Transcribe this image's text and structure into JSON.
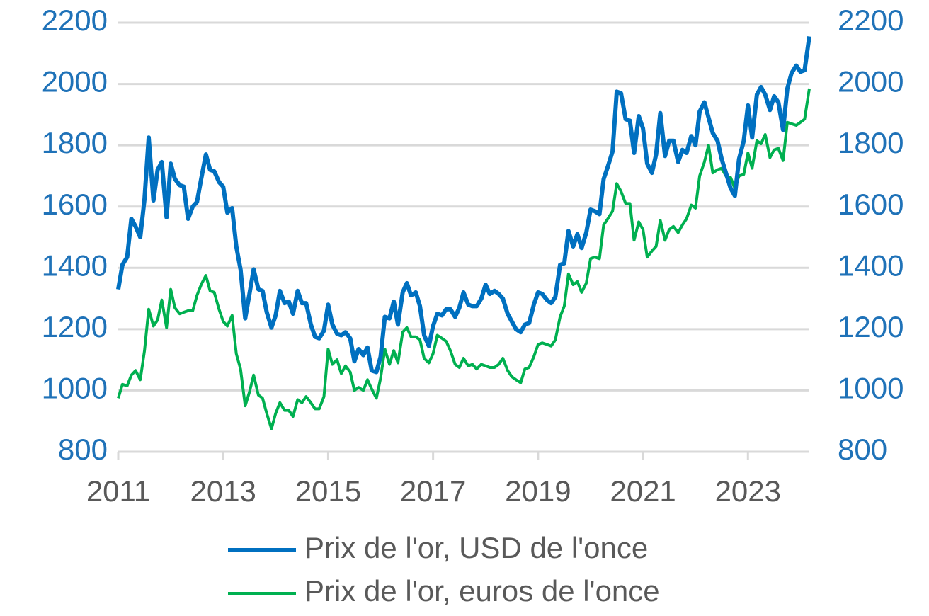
{
  "chart_data": {
    "type": "line",
    "x": [
      2011.0,
      2011.08,
      2011.17,
      2011.25,
      2011.33,
      2011.42,
      2011.5,
      2011.58,
      2011.67,
      2011.75,
      2011.83,
      2011.92,
      2012.0,
      2012.08,
      2012.17,
      2012.25,
      2012.33,
      2012.42,
      2012.5,
      2012.58,
      2012.67,
      2012.75,
      2012.83,
      2012.92,
      2013.0,
      2013.08,
      2013.17,
      2013.25,
      2013.33,
      2013.42,
      2013.5,
      2013.58,
      2013.67,
      2013.75,
      2013.83,
      2013.92,
      2014.0,
      2014.08,
      2014.17,
      2014.25,
      2014.33,
      2014.42,
      2014.5,
      2014.58,
      2014.67,
      2014.75,
      2014.83,
      2014.92,
      2015.0,
      2015.08,
      2015.17,
      2015.25,
      2015.33,
      2015.42,
      2015.5,
      2015.58,
      2015.67,
      2015.75,
      2015.83,
      2015.92,
      2016.0,
      2016.08,
      2016.17,
      2016.25,
      2016.33,
      2016.42,
      2016.5,
      2016.58,
      2016.67,
      2016.75,
      2016.83,
      2016.92,
      2017.0,
      2017.08,
      2017.17,
      2017.25,
      2017.33,
      2017.42,
      2017.5,
      2017.58,
      2017.67,
      2017.75,
      2017.83,
      2017.92,
      2018.0,
      2018.08,
      2018.17,
      2018.25,
      2018.33,
      2018.42,
      2018.5,
      2018.58,
      2018.67,
      2018.75,
      2018.83,
      2018.92,
      2019.0,
      2019.08,
      2019.17,
      2019.25,
      2019.33,
      2019.42,
      2019.5,
      2019.58,
      2019.67,
      2019.75,
      2019.83,
      2019.92,
      2020.0,
      2020.08,
      2020.17,
      2020.25,
      2020.33,
      2020.42,
      2020.5,
      2020.58,
      2020.67,
      2020.75,
      2020.83,
      2020.92,
      2021.0,
      2021.08,
      2021.17,
      2021.25,
      2021.33,
      2021.42,
      2021.5,
      2021.58,
      2021.67,
      2021.75,
      2021.83,
      2021.92,
      2022.0,
      2022.08,
      2022.17,
      2022.25,
      2022.33,
      2022.42,
      2022.5,
      2022.58,
      2022.67,
      2022.75,
      2022.83,
      2022.92,
      2023.0,
      2023.08,
      2023.17,
      2023.25,
      2023.33,
      2023.42,
      2023.5,
      2023.58,
      2023.67,
      2023.75,
      2023.83,
      2023.92,
      2024.0,
      2024.08,
      2024.17
    ],
    "series": [
      {
        "name": "Prix de l'or, USD de l'once",
        "color": "#0070c0",
        "values": [
          1330,
          1410,
          1435,
          1560,
          1535,
          1500,
          1625,
          1825,
          1620,
          1720,
          1745,
          1565,
          1740,
          1690,
          1670,
          1665,
          1560,
          1600,
          1615,
          1690,
          1770,
          1720,
          1715,
          1680,
          1665,
          1580,
          1595,
          1470,
          1395,
          1235,
          1315,
          1395,
          1330,
          1325,
          1255,
          1205,
          1245,
          1325,
          1285,
          1290,
          1250,
          1325,
          1285,
          1285,
          1215,
          1175,
          1170,
          1195,
          1280,
          1215,
          1185,
          1180,
          1190,
          1170,
          1095,
          1135,
          1115,
          1140,
          1065,
          1060,
          1110,
          1240,
          1235,
          1290,
          1215,
          1320,
          1350,
          1310,
          1320,
          1275,
          1180,
          1145,
          1210,
          1250,
          1245,
          1265,
          1265,
          1240,
          1270,
          1320,
          1280,
          1275,
          1275,
          1300,
          1345,
          1315,
          1325,
          1315,
          1300,
          1250,
          1225,
          1200,
          1190,
          1215,
          1220,
          1280,
          1320,
          1315,
          1295,
          1285,
          1305,
          1410,
          1415,
          1520,
          1470,
          1510,
          1465,
          1515,
          1590,
          1585,
          1575,
          1690,
          1730,
          1780,
          1975,
          1970,
          1885,
          1880,
          1775,
          1895,
          1855,
          1740,
          1710,
          1770,
          1905,
          1765,
          1815,
          1815,
          1745,
          1785,
          1775,
          1830,
          1800,
          1910,
          1940,
          1890,
          1840,
          1815,
          1755,
          1710,
          1660,
          1635,
          1755,
          1815,
          1930,
          1825,
          1965,
          1990,
          1965,
          1915,
          1960,
          1940,
          1850,
          1985,
          2035,
          2060,
          2040,
          2045,
          2155
        ]
      },
      {
        "name": "Prix de l'or, euros de l'once",
        "color": "#00b050",
        "values": [
          975,
          1020,
          1015,
          1050,
          1065,
          1035,
          1130,
          1265,
          1210,
          1230,
          1295,
          1205,
          1330,
          1270,
          1250,
          1255,
          1260,
          1260,
          1310,
          1345,
          1375,
          1325,
          1320,
          1265,
          1225,
          1210,
          1245,
          1120,
          1070,
          950,
          995,
          1050,
          985,
          975,
          925,
          875,
          925,
          960,
          935,
          935,
          915,
          970,
          960,
          980,
          960,
          940,
          940,
          980,
          1135,
          1085,
          1100,
          1055,
          1080,
          1060,
          1000,
          1010,
          1000,
          1035,
          1005,
          975,
          1040,
          1135,
          1085,
          1130,
          1090,
          1190,
          1205,
          1175,
          1175,
          1165,
          1105,
          1090,
          1120,
          1180,
          1170,
          1160,
          1130,
          1085,
          1075,
          1105,
          1080,
          1085,
          1070,
          1085,
          1080,
          1075,
          1075,
          1085,
          1105,
          1065,
          1045,
          1035,
          1025,
          1070,
          1075,
          1110,
          1150,
          1155,
          1150,
          1145,
          1165,
          1240,
          1275,
          1380,
          1345,
          1355,
          1320,
          1350,
          1430,
          1435,
          1430,
          1540,
          1560,
          1585,
          1675,
          1650,
          1610,
          1610,
          1490,
          1550,
          1525,
          1435,
          1455,
          1470,
          1555,
          1490,
          1525,
          1535,
          1515,
          1540,
          1560,
          1605,
          1595,
          1700,
          1745,
          1800,
          1710,
          1720,
          1725,
          1700,
          1695,
          1660,
          1700,
          1705,
          1775,
          1725,
          1815,
          1805,
          1835,
          1760,
          1785,
          1790,
          1750,
          1875,
          1870,
          1865,
          1875,
          1885,
          1985
        ]
      }
    ],
    "xlim": [
      2011,
      2024.17
    ],
    "xticks": [
      2011,
      2013,
      2015,
      2017,
      2019,
      2021,
      2023
    ],
    "ylim": [
      800,
      2200
    ],
    "yticks": [
      800,
      1000,
      1200,
      1400,
      1600,
      1800,
      2000,
      2200
    ],
    "y2lim": [
      800,
      2200
    ],
    "y2ticks": [
      800,
      1000,
      1200,
      1400,
      1600,
      1800,
      2000,
      2200
    ],
    "grid": true,
    "legend": "bottom"
  }
}
